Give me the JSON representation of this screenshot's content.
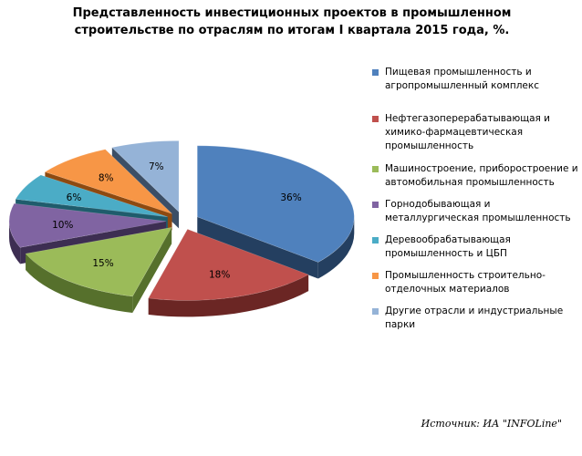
{
  "chart_data": {
    "type": "pie",
    "title_lines": [
      "Представленность инвестиционных проектов в промышленном",
      "строительстве по отраслям по итогам I квартала 2015 года, %."
    ],
    "slices": [
      {
        "label": "Пищевая промышленность и агропромышленный комплекс",
        "value": 36,
        "value_label": "36%",
        "color": "#4F81BD",
        "side_color": "#243F60"
      },
      {
        "label": "Нефтегазоперерабатывающая и химико-фармацевтическая промышленность",
        "value": 18,
        "value_label": "18%",
        "color": "#C0504D",
        "side_color": "#6B2624"
      },
      {
        "label": "Машиностроение, приборостроение и автомобильная промышленность",
        "value": 15,
        "value_label": "15%",
        "color": "#9BBB59",
        "side_color": "#56702C"
      },
      {
        "label": "Горнодобывающая и металлургическая промышленность",
        "value": 10,
        "value_label": "10%",
        "color": "#8064A2",
        "side_color": "#3D2E52"
      },
      {
        "label": "Деревообрабатывающая промышленность и ЦБП",
        "value": 6,
        "value_label": "6%",
        "color": "#4BACC6",
        "side_color": "#1F5C6C"
      },
      {
        "label": "Промышленность строительно-отделочных материалов",
        "value": 8,
        "value_label": "8%",
        "color": "#F79646",
        "side_color": "#8E4A10"
      },
      {
        "label": "Другие отрасли и индустриальные парки",
        "value": 7,
        "value_label": "7%",
        "color": "#95B3D7",
        "side_color": "#3B4E66"
      }
    ],
    "legend_position": "right",
    "exploded": true,
    "three_d": true
  },
  "source": "Источник: ИА \"INFOLine\""
}
